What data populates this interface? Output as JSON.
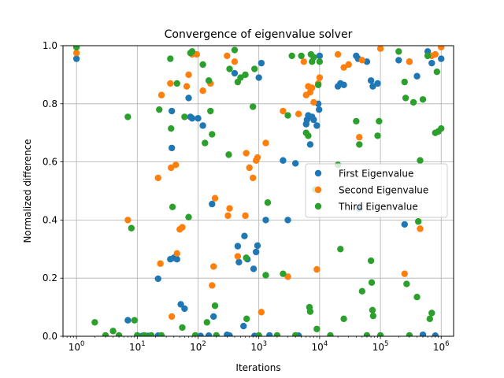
{
  "chart_data": {
    "type": "scatter",
    "title": "Convergence of eigenvalue solver",
    "xlabel": "Iterations",
    "ylabel": "Normalized difference",
    "xscale": "log",
    "xlim": [
      0.6,
      1600000
    ],
    "ylim": [
      0.0,
      1.0
    ],
    "x_tick_labels": [
      {
        "value": 1,
        "base": "10",
        "exp": "0"
      },
      {
        "value": 10,
        "base": "10",
        "exp": "1"
      },
      {
        "value": 100,
        "base": "10",
        "exp": "2"
      },
      {
        "value": 1000,
        "base": "10",
        "exp": "3"
      },
      {
        "value": 10000,
        "base": "10",
        "exp": "4"
      },
      {
        "value": 100000,
        "base": "10",
        "exp": "5"
      },
      {
        "value": 1000000,
        "base": "10",
        "exp": "6"
      }
    ],
    "y_ticks": [
      {
        "value": 0.0,
        "label": "0.0"
      },
      {
        "value": 0.2,
        "label": "0.2"
      },
      {
        "value": 0.4,
        "label": "0.4"
      },
      {
        "value": 0.6,
        "label": "0.6"
      },
      {
        "value": 0.8,
        "label": "0.8"
      },
      {
        "value": 1.0,
        "label": "1.0"
      }
    ],
    "grid": true,
    "legend_position": "center-right",
    "series": [
      {
        "name": "First Eigenvalue",
        "color": "#1f77b4",
        "points": [
          [
            1,
            0.955
          ],
          [
            5,
            0.001
          ],
          [
            7,
            0.055
          ],
          [
            10,
            0.002
          ],
          [
            12,
            0.001
          ],
          [
            15,
            0.001
          ],
          [
            22,
            0.198
          ],
          [
            22,
            0.002
          ],
          [
            35,
            0.265
          ],
          [
            37,
            0.775
          ],
          [
            37,
            0.648
          ],
          [
            40,
            0.27
          ],
          [
            45,
            0.265
          ],
          [
            52,
            0.11
          ],
          [
            60,
            0.095
          ],
          [
            70,
            0.82
          ],
          [
            75,
            0.755
          ],
          [
            80,
            0.75
          ],
          [
            100,
            0.75
          ],
          [
            110,
            0.001
          ],
          [
            120,
            0.725
          ],
          [
            150,
            0.002
          ],
          [
            170,
            0.455
          ],
          [
            180,
            0.068
          ],
          [
            200,
            0.002
          ],
          [
            300,
            0.005
          ],
          [
            330,
            0.002
          ],
          [
            400,
            0.905
          ],
          [
            450,
            0.31
          ],
          [
            470,
            0.255
          ],
          [
            560,
            0.035
          ],
          [
            580,
            0.345
          ],
          [
            650,
            0.265
          ],
          [
            820,
            0.232
          ],
          [
            850,
            0.001
          ],
          [
            900,
            0.29
          ],
          [
            950,
            0.312
          ],
          [
            1000,
            0.89
          ],
          [
            1100,
            0.94
          ],
          [
            1300,
            0.4
          ],
          [
            1500,
            0.003
          ],
          [
            2000,
            0.002
          ],
          [
            2500,
            0.605
          ],
          [
            3000,
            0.4
          ],
          [
            4000,
            0.595
          ],
          [
            4500,
            0.002
          ],
          [
            6000,
            0.73
          ],
          [
            6200,
            0.745
          ],
          [
            6500,
            0.76
          ],
          [
            7000,
            0.66
          ],
          [
            7500,
            0.755
          ],
          [
            8000,
            0.745
          ],
          [
            9000,
            0.725
          ],
          [
            9500,
            0.8
          ],
          [
            9800,
            0.78
          ],
          [
            10000,
            0.965
          ],
          [
            20000,
            0.86
          ],
          [
            22000,
            0.87
          ],
          [
            25000,
            0.865
          ],
          [
            40000,
            0.965
          ],
          [
            43000,
            0.955
          ],
          [
            45000,
            0.44
          ],
          [
            60000,
            0.945
          ],
          [
            70000,
            0.88
          ],
          [
            75000,
            0.86
          ],
          [
            90000,
            0.87
          ],
          [
            200000,
            0.95
          ],
          [
            250000,
            0.385
          ],
          [
            300000,
            0.945
          ],
          [
            400000,
            0.895
          ],
          [
            500000,
            0.005
          ],
          [
            600000,
            0.98
          ],
          [
            700000,
            0.94
          ],
          [
            800000,
            0.002
          ],
          [
            1000000,
            0.955
          ]
        ]
      },
      {
        "name": "Second Eigenvalue",
        "color": "#ff7f0e",
        "points": [
          [
            1,
            0.975
          ],
          [
            7,
            0.4
          ],
          [
            22,
            0.545
          ],
          [
            24,
            0.25
          ],
          [
            25,
            0.83
          ],
          [
            35,
            0.87
          ],
          [
            36,
            0.58
          ],
          [
            37,
            0.068
          ],
          [
            43,
            0.59
          ],
          [
            45,
            0.285
          ],
          [
            50,
            0.368
          ],
          [
            55,
            0.375
          ],
          [
            65,
            0.86
          ],
          [
            70,
            0.9
          ],
          [
            80,
            0.97
          ],
          [
            95,
            0.97
          ],
          [
            120,
            0.845
          ],
          [
            160,
            0.87
          ],
          [
            170,
            0.175
          ],
          [
            180,
            0.24
          ],
          [
            190,
            0.475
          ],
          [
            300,
            0.965
          ],
          [
            310,
            0.415
          ],
          [
            330,
            0.44
          ],
          [
            400,
            0.945
          ],
          [
            450,
            0.275
          ],
          [
            600,
            0.415
          ],
          [
            620,
            0.63
          ],
          [
            700,
            0.58
          ],
          [
            800,
            0.545
          ],
          [
            900,
            0.605
          ],
          [
            950,
            0.615
          ],
          [
            1100,
            0.083
          ],
          [
            1300,
            0.665
          ],
          [
            2500,
            0.775
          ],
          [
            3000,
            0.205
          ],
          [
            4500,
            0.765
          ],
          [
            5500,
            0.945
          ],
          [
            6000,
            0.83
          ],
          [
            6500,
            0.86
          ],
          [
            7000,
            0.84
          ],
          [
            7500,
            0.855
          ],
          [
            8000,
            0.805
          ],
          [
            9000,
            0.23
          ],
          [
            9500,
            0.87
          ],
          [
            10000,
            0.89
          ],
          [
            20000,
            0.97
          ],
          [
            25000,
            0.925
          ],
          [
            30000,
            0.935
          ],
          [
            45000,
            0.685
          ],
          [
            50000,
            0.95
          ],
          [
            100000,
            0.99
          ],
          [
            250000,
            0.215
          ],
          [
            300000,
            0.945
          ],
          [
            450000,
            0.37
          ],
          [
            700000,
            0.965
          ],
          [
            800000,
            0.97
          ],
          [
            1000000,
            0.995
          ]
        ]
      },
      {
        "name": "Third Eigenvalue",
        "color": "#2ca02c",
        "points": [
          [
            1,
            0.995
          ],
          [
            2,
            0.048
          ],
          [
            3,
            0.003
          ],
          [
            4,
            0.018
          ],
          [
            5,
            0.003
          ],
          [
            7,
            0.755
          ],
          [
            8,
            0.372
          ],
          [
            9,
            0.055
          ],
          [
            10,
            0.003
          ],
          [
            13,
            0.003
          ],
          [
            17,
            0.003
          ],
          [
            23,
            0.78
          ],
          [
            25,
            0.003
          ],
          [
            35,
            0.955
          ],
          [
            36,
            0.715
          ],
          [
            38,
            0.445
          ],
          [
            45,
            0.87
          ],
          [
            55,
            0.03
          ],
          [
            60,
            0.755
          ],
          [
            70,
            0.41
          ],
          [
            75,
            0.975
          ],
          [
            80,
            0.98
          ],
          [
            90,
            0.003
          ],
          [
            120,
            0.935
          ],
          [
            130,
            0.665
          ],
          [
            140,
            0.048
          ],
          [
            150,
            0.88
          ],
          [
            160,
            0.775
          ],
          [
            170,
            0.695
          ],
          [
            190,
            0.105
          ],
          [
            200,
            0.003
          ],
          [
            320,
            0.625
          ],
          [
            330,
            0.92
          ],
          [
            400,
            0.985
          ],
          [
            450,
            0.875
          ],
          [
            500,
            0.89
          ],
          [
            600,
            0.9
          ],
          [
            620,
            0.27
          ],
          [
            630,
            0.06
          ],
          [
            800,
            0.79
          ],
          [
            850,
            0.92
          ],
          [
            1000,
            0.003
          ],
          [
            1300,
            0.21
          ],
          [
            1400,
            0.46
          ],
          [
            2000,
            0.003
          ],
          [
            2500,
            0.215
          ],
          [
            3000,
            0.76
          ],
          [
            3500,
            0.965
          ],
          [
            4000,
            0.003
          ],
          [
            5000,
            0.965
          ],
          [
            6000,
            0.7
          ],
          [
            6500,
            0.69
          ],
          [
            6800,
            0.1
          ],
          [
            7000,
            0.085
          ],
          [
            7200,
            0.97
          ],
          [
            7500,
            0.945
          ],
          [
            8000,
            0.96
          ],
          [
            8500,
            0.505
          ],
          [
            9000,
            0.025
          ],
          [
            9500,
            0.865
          ],
          [
            10000,
            0.945
          ],
          [
            15000,
            0.003
          ],
          [
            20000,
            0.59
          ],
          [
            22000,
            0.3
          ],
          [
            25000,
            0.06
          ],
          [
            40000,
            0.74
          ],
          [
            45000,
            0.66
          ],
          [
            50000,
            0.155
          ],
          [
            60000,
            0.003
          ],
          [
            70000,
            0.26
          ],
          [
            72000,
            0.185
          ],
          [
            74000,
            0.09
          ],
          [
            76000,
            0.07
          ],
          [
            90000,
            0.69
          ],
          [
            95000,
            0.74
          ],
          [
            100000,
            0.003
          ],
          [
            200000,
            0.98
          ],
          [
            250000,
            0.875
          ],
          [
            260000,
            0.82
          ],
          [
            270000,
            0.18
          ],
          [
            300000,
            0.003
          ],
          [
            350000,
            0.805
          ],
          [
            400000,
            0.135
          ],
          [
            420000,
            0.395
          ],
          [
            450000,
            0.605
          ],
          [
            500000,
            0.815
          ],
          [
            600000,
            0.965
          ],
          [
            650000,
            0.06
          ],
          [
            700000,
            0.08
          ],
          [
            800000,
            0.7
          ],
          [
            850000,
            0.91
          ],
          [
            900000,
            0.705
          ],
          [
            1000000,
            0.715
          ]
        ]
      }
    ]
  }
}
